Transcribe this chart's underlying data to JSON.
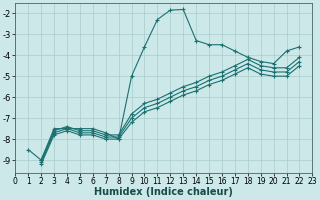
{
  "xlabel": "Humidex (Indice chaleur)",
  "background_color": "#cce8e8",
  "grid_color": "#aacccc",
  "line_color": "#1a7070",
  "xlim": [
    0,
    23
  ],
  "ylim": [
    -9.6,
    -1.5
  ],
  "xticks": [
    0,
    1,
    2,
    3,
    4,
    5,
    6,
    7,
    8,
    9,
    10,
    11,
    12,
    13,
    14,
    15,
    16,
    17,
    18,
    19,
    20,
    21,
    22,
    23
  ],
  "yticks": [
    -2,
    -3,
    -4,
    -5,
    -6,
    -7,
    -8,
    -9
  ],
  "series": [
    {
      "x": [
        1,
        2,
        3,
        4,
        5,
        6,
        7,
        8,
        9,
        10,
        11,
        12,
        13,
        14,
        15,
        16,
        17,
        18,
        19,
        20,
        21,
        22
      ],
      "y": [
        -8.5,
        -9.0,
        -7.5,
        -7.5,
        -7.5,
        -7.5,
        -7.7,
        -8.0,
        -5.0,
        -3.6,
        -2.3,
        -1.85,
        -1.82,
        -3.3,
        -3.5,
        -3.5,
        -3.8,
        -4.1,
        -4.3,
        -4.4,
        -3.8,
        -3.6
      ]
    },
    {
      "x": [
        2,
        3,
        4,
        5,
        6,
        7,
        8,
        9,
        10,
        11,
        12,
        13,
        14,
        15,
        16,
        17,
        18,
        19,
        20,
        21,
        22
      ],
      "y": [
        -9.0,
        -7.6,
        -7.4,
        -7.6,
        -7.6,
        -7.8,
        -7.8,
        -6.8,
        -6.3,
        -6.1,
        -5.8,
        -5.5,
        -5.3,
        -5.0,
        -4.8,
        -4.5,
        -4.2,
        -4.5,
        -4.6,
        -4.6,
        -4.1
      ]
    },
    {
      "x": [
        2,
        3,
        4,
        5,
        6,
        7,
        8,
        9,
        10,
        11,
        12,
        13,
        14,
        15,
        16,
        17,
        18,
        19,
        20,
        21,
        22
      ],
      "y": [
        -9.1,
        -7.7,
        -7.5,
        -7.7,
        -7.7,
        -7.9,
        -7.9,
        -7.0,
        -6.5,
        -6.3,
        -6.0,
        -5.7,
        -5.5,
        -5.2,
        -5.0,
        -4.7,
        -4.4,
        -4.7,
        -4.8,
        -4.8,
        -4.3
      ]
    },
    {
      "x": [
        2,
        3,
        4,
        5,
        6,
        7,
        8,
        9,
        10,
        11,
        12,
        13,
        14,
        15,
        16,
        17,
        18,
        19,
        20,
        21,
        22
      ],
      "y": [
        -9.2,
        -7.8,
        -7.6,
        -7.8,
        -7.8,
        -8.0,
        -8.0,
        -7.2,
        -6.7,
        -6.5,
        -6.2,
        -5.9,
        -5.7,
        -5.4,
        -5.2,
        -4.9,
        -4.6,
        -4.9,
        -5.0,
        -5.0,
        -4.5
      ]
    }
  ]
}
